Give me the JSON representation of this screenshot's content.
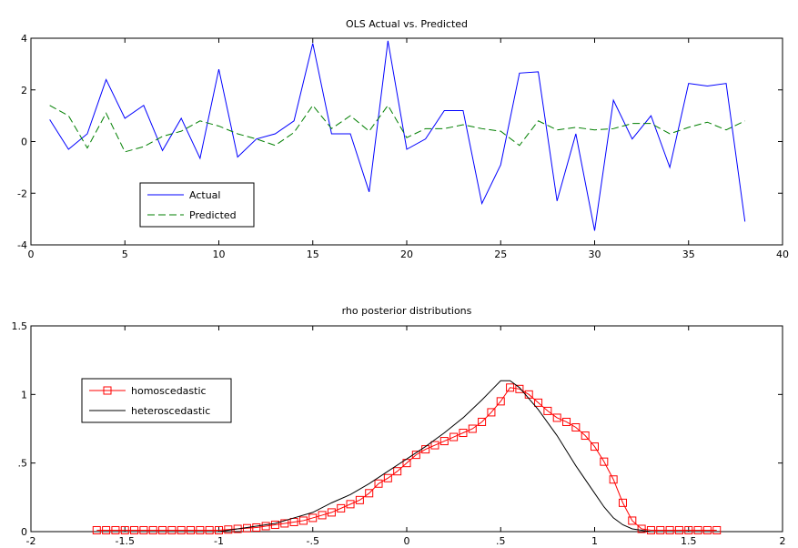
{
  "chart_data": [
    {
      "type": "line",
      "title": "OLS   Actual vs. Predicted",
      "xlabel": "",
      "ylabel": "",
      "xlim": [
        0,
        40
      ],
      "ylim": [
        -4,
        4
      ],
      "xticks": [
        0,
        5,
        10,
        15,
        20,
        25,
        30,
        35,
        40
      ],
      "yticks": [
        -4,
        -2,
        0,
        2,
        4
      ],
      "grid": false,
      "legend_position": "bottom-left",
      "x": [
        1,
        2,
        3,
        4,
        5,
        6,
        7,
        8,
        9,
        10,
        11,
        12,
        13,
        14,
        15,
        16,
        17,
        18,
        19,
        20,
        21,
        22,
        23,
        24,
        25,
        26,
        27,
        28,
        29,
        30,
        31,
        32,
        33,
        34,
        35,
        36,
        37,
        38
      ],
      "series": [
        {
          "name": "Actual",
          "color": "#0000ff",
          "style": "solid",
          "values": [
            0.85,
            -0.3,
            0.3,
            2.4,
            0.9,
            1.4,
            -0.35,
            0.9,
            -0.65,
            2.8,
            -0.6,
            0.1,
            0.3,
            0.8,
            3.8,
            0.3,
            0.3,
            -1.95,
            3.9,
            -0.3,
            0.1,
            1.2,
            1.2,
            -2.4,
            -0.9,
            2.65,
            2.7,
            -2.3,
            0.3,
            -3.45,
            1.6,
            0.1,
            1.0,
            -1.0,
            2.25,
            2.15,
            2.25,
            -3.1
          ]
        },
        {
          "name": "Predicted",
          "color": "#007f00",
          "style": "dashed",
          "values": [
            1.4,
            1.0,
            -0.25,
            1.1,
            -0.4,
            -0.2,
            0.2,
            0.4,
            0.8,
            0.6,
            0.3,
            0.1,
            -0.15,
            0.35,
            1.4,
            0.5,
            1.0,
            0.4,
            1.4,
            0.15,
            0.5,
            0.5,
            0.65,
            0.5,
            0.4,
            -0.15,
            0.8,
            0.45,
            0.55,
            0.45,
            0.5,
            0.7,
            0.7,
            0.3,
            0.55,
            0.75,
            0.45,
            0.8
          ]
        }
      ]
    },
    {
      "type": "line",
      "title": "rho posterior distributions",
      "xlabel": "",
      "ylabel": "",
      "xlim": [
        -2,
        2
      ],
      "ylim": [
        0,
        1.5
      ],
      "xticks": [
        -2,
        -1.5,
        -1,
        -0.5,
        0,
        0.5,
        1,
        1.5,
        2
      ],
      "yticks": [
        0,
        0.5,
        1,
        1.5
      ],
      "grid": false,
      "legend_position": "top-left",
      "series": [
        {
          "name": "homoscedastic",
          "color": "#ff0000",
          "style": "solid-square-markers",
          "x": [
            -1.65,
            -1.6,
            -1.55,
            -1.5,
            -1.45,
            -1.4,
            -1.35,
            -1.3,
            -1.25,
            -1.2,
            -1.15,
            -1.1,
            -1.05,
            -1.0,
            -0.95,
            -0.9,
            -0.85,
            -0.8,
            -0.75,
            -0.7,
            -0.65,
            -0.6,
            -0.55,
            -0.5,
            -0.45,
            -0.4,
            -0.35,
            -0.3,
            -0.25,
            -0.2,
            -0.15,
            -0.1,
            -0.05,
            0.0,
            0.05,
            0.1,
            0.15,
            0.2,
            0.25,
            0.3,
            0.35,
            0.4,
            0.45,
            0.5,
            0.55,
            0.6,
            0.65,
            0.7,
            0.75,
            0.8,
            0.85,
            0.9,
            0.95,
            1.0,
            1.05,
            1.1,
            1.15,
            1.2,
            1.25,
            1.3,
            1.35,
            1.4,
            1.45,
            1.5,
            1.55,
            1.6,
            1.65
          ],
          "y": [
            0.01,
            0.01,
            0.01,
            0.01,
            0.01,
            0.01,
            0.01,
            0.01,
            0.01,
            0.01,
            0.01,
            0.01,
            0.01,
            0.01,
            0.015,
            0.02,
            0.025,
            0.03,
            0.04,
            0.05,
            0.06,
            0.07,
            0.08,
            0.1,
            0.12,
            0.14,
            0.17,
            0.2,
            0.23,
            0.28,
            0.35,
            0.39,
            0.44,
            0.5,
            0.56,
            0.6,
            0.63,
            0.66,
            0.69,
            0.72,
            0.75,
            0.8,
            0.87,
            0.95,
            1.05,
            1.04,
            1.0,
            0.94,
            0.88,
            0.83,
            0.8,
            0.76,
            0.7,
            0.62,
            0.51,
            0.38,
            0.21,
            0.08,
            0.02,
            0.01,
            0.01,
            0.01,
            0.01,
            0.01,
            0.01,
            0.01,
            0.01
          ]
        },
        {
          "name": "heteroscedastic",
          "color": "#000000",
          "style": "solid",
          "x": [
            -1.0,
            -0.9,
            -0.8,
            -0.7,
            -0.6,
            -0.5,
            -0.4,
            -0.3,
            -0.2,
            -0.1,
            0.0,
            0.1,
            0.2,
            0.3,
            0.4,
            0.45,
            0.5,
            0.55,
            0.6,
            0.7,
            0.8,
            0.9,
            1.0,
            1.05,
            1.1,
            1.15,
            1.2,
            1.25,
            1.3
          ],
          "y": [
            0.0,
            0.02,
            0.04,
            0.06,
            0.1,
            0.14,
            0.21,
            0.27,
            0.35,
            0.44,
            0.53,
            0.62,
            0.72,
            0.83,
            0.96,
            1.03,
            1.1,
            1.1,
            1.05,
            0.89,
            0.7,
            0.48,
            0.28,
            0.18,
            0.1,
            0.05,
            0.02,
            0.01,
            0.0
          ]
        }
      ]
    }
  ]
}
